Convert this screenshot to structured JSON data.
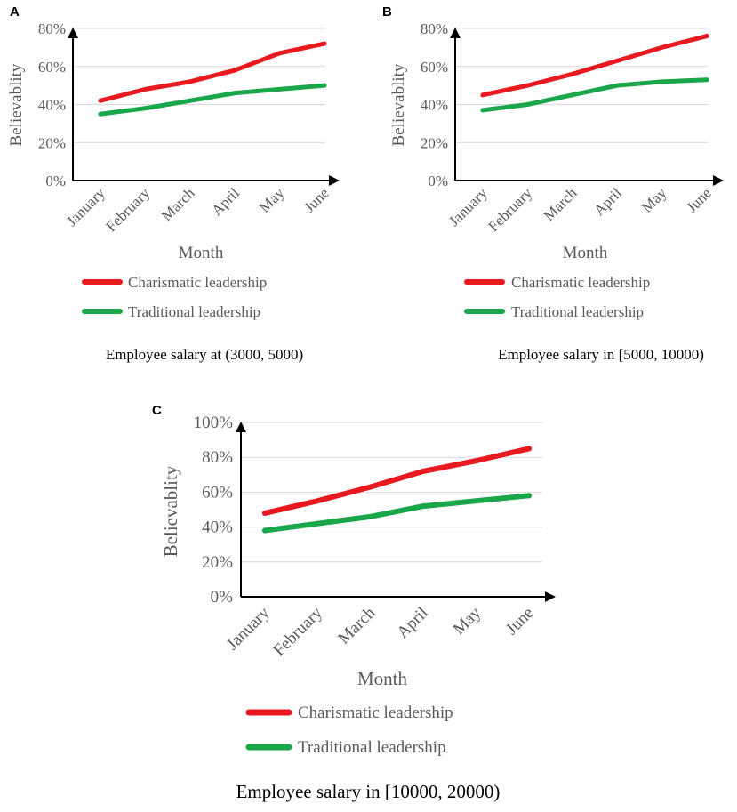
{
  "colors": {
    "charismatic": "#e8191f",
    "traditional": "#1aa64a",
    "grid": "#d9d9d9",
    "axis": "#000000"
  },
  "chart_data": [
    {
      "panel": "A",
      "type": "line",
      "categories": [
        "January",
        "February",
        "March",
        "April",
        "May",
        "June"
      ],
      "series": [
        {
          "name": "Charismatic leadership",
          "values": [
            42,
            48,
            52,
            58,
            67,
            72
          ]
        },
        {
          "name": "Traditional leadership",
          "values": [
            35,
            38,
            42,
            46,
            48,
            50
          ]
        }
      ],
      "yticks": [
        "0%",
        "20%",
        "40%",
        "60%",
        "80%"
      ],
      "ylim": [
        0,
        80
      ],
      "xlabel": "Month",
      "ylabel": "Believablity",
      "caption": "Employee salary at (3000, 5000)"
    },
    {
      "panel": "B",
      "type": "line",
      "categories": [
        "January",
        "February",
        "March",
        "April",
        "May",
        "June"
      ],
      "series": [
        {
          "name": "Charismatic leadership",
          "values": [
            45,
            50,
            56,
            63,
            70,
            76
          ]
        },
        {
          "name": "Traditional leadership",
          "values": [
            37,
            40,
            45,
            50,
            52,
            53
          ]
        }
      ],
      "yticks": [
        "0%",
        "20%",
        "40%",
        "60%",
        "80%"
      ],
      "ylim": [
        0,
        80
      ],
      "xlabel": "Month",
      "ylabel": "Believablity",
      "caption": "Employee salary in [5000, 10000)"
    },
    {
      "panel": "C",
      "type": "line",
      "categories": [
        "January",
        "February",
        "March",
        "April",
        "May",
        "June"
      ],
      "series": [
        {
          "name": "Charismatic leadership",
          "values": [
            48,
            55,
            63,
            72,
            78,
            85
          ]
        },
        {
          "name": "Traditional leadership",
          "values": [
            38,
            42,
            46,
            52,
            55,
            58
          ]
        }
      ],
      "yticks": [
        "0%",
        "20%",
        "40%",
        "60%",
        "80%",
        "100%"
      ],
      "ylim": [
        0,
        100
      ],
      "xlabel": "Month",
      "ylabel": "Believablity",
      "caption": "Employee salary in [10000, 20000)"
    }
  ]
}
